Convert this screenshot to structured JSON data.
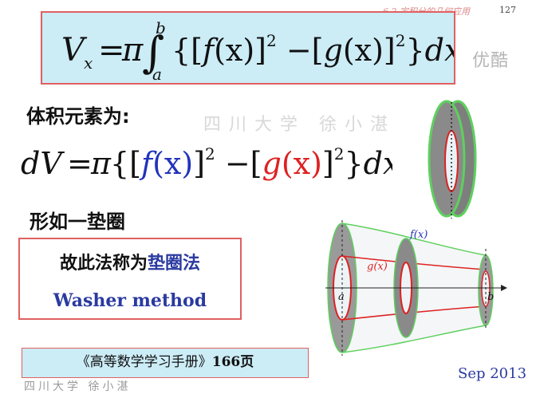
{
  "header": {
    "note": "6.2 定积分的几何应用",
    "page_number": "127"
  },
  "watermark": {
    "logo": "优酷",
    "university": "四川大学  徐小湛",
    "bottom": "四川大学  徐小湛"
  },
  "formula_main": {
    "lhs": "V",
    "lhs_sub": "x",
    "eq": "=",
    "pi": "π",
    "integral": "∫",
    "upper": "b",
    "lower": "a",
    "body_parts": [
      "{[",
      "f",
      "(x)]",
      "2",
      " −[",
      "g",
      "(x)]",
      "2",
      "}",
      "dx"
    ]
  },
  "volume_element_label": "体积元素为:",
  "formula_element": {
    "lhs": "dV",
    "eq": "=",
    "pi": "π",
    "parts": [
      "{[",
      "f",
      "(x)",
      "]",
      "2",
      " −[",
      "g",
      "(x)",
      "]",
      "2",
      "}",
      "dx"
    ]
  },
  "shape_label": "形如一垫圈",
  "method": {
    "prefix": "故此法称为",
    "name_cn": "垫圈法",
    "name_en": "Washer method"
  },
  "reference": {
    "book": "《高等数学学习手册》",
    "page": "166页"
  },
  "date": "Sep 2013",
  "diagram_labels": {
    "f": "f(x)",
    "g": "g(x)",
    "a": "a",
    "b": "b"
  },
  "colors": {
    "f_color": "#2233bb",
    "g_color": "#dd2222",
    "washer_gray": "#8a8a8a",
    "edge_green": "#5ed05e",
    "box_fill": "#ccecf6",
    "box_border": "#e06060"
  }
}
